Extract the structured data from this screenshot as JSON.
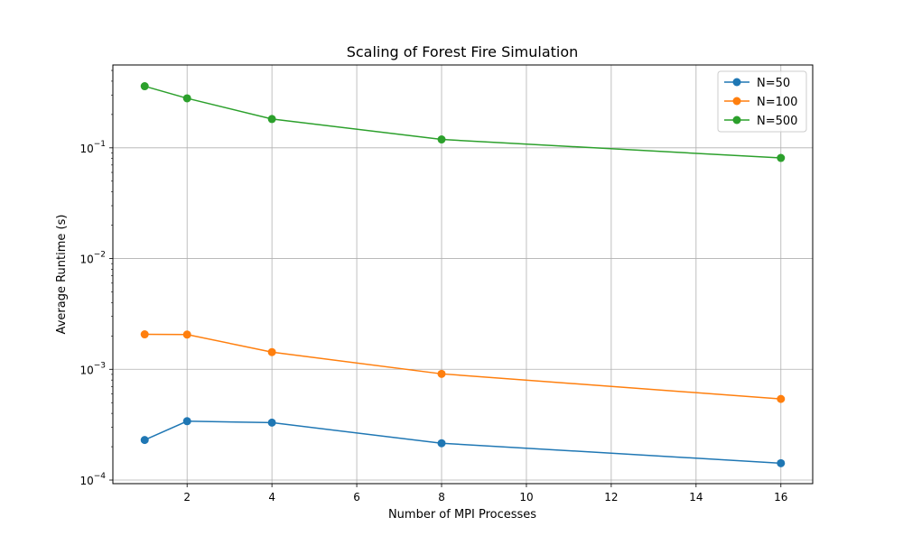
{
  "chart_data": {
    "type": "line",
    "title": "Scaling of Forest Fire Simulation",
    "xlabel": "Number of MPI Processes",
    "ylabel": "Average Runtime (s)",
    "x": [
      1,
      2,
      4,
      8,
      16
    ],
    "xlim": [
      0.25,
      16.75
    ],
    "xticks": [
      2,
      4,
      6,
      8,
      10,
      12,
      14,
      16
    ],
    "yscale": "log",
    "ylim": [
      9.28e-05,
      0.56
    ],
    "yticks": [
      {
        "value": 0.0001,
        "base": "10",
        "exp": "−4"
      },
      {
        "value": 0.001,
        "base": "10",
        "exp": "−3"
      },
      {
        "value": 0.01,
        "base": "10",
        "exp": "−2"
      },
      {
        "value": 0.1,
        "base": "10",
        "exp": "−1"
      }
    ],
    "grid": true,
    "legend_position": "top-right",
    "series": [
      {
        "name": "N=50",
        "color": "#1f77b4",
        "values": [
          0.00023,
          0.00034,
          0.00033,
          0.000215,
          0.000142
        ]
      },
      {
        "name": "N=100",
        "color": "#ff7f0e",
        "values": [
          0.00207,
          0.00206,
          0.00143,
          0.00091,
          0.00054
        ]
      },
      {
        "name": "N=500",
        "color": "#2ca02c",
        "values": [
          0.36,
          0.28,
          0.182,
          0.119,
          0.081
        ]
      }
    ]
  }
}
